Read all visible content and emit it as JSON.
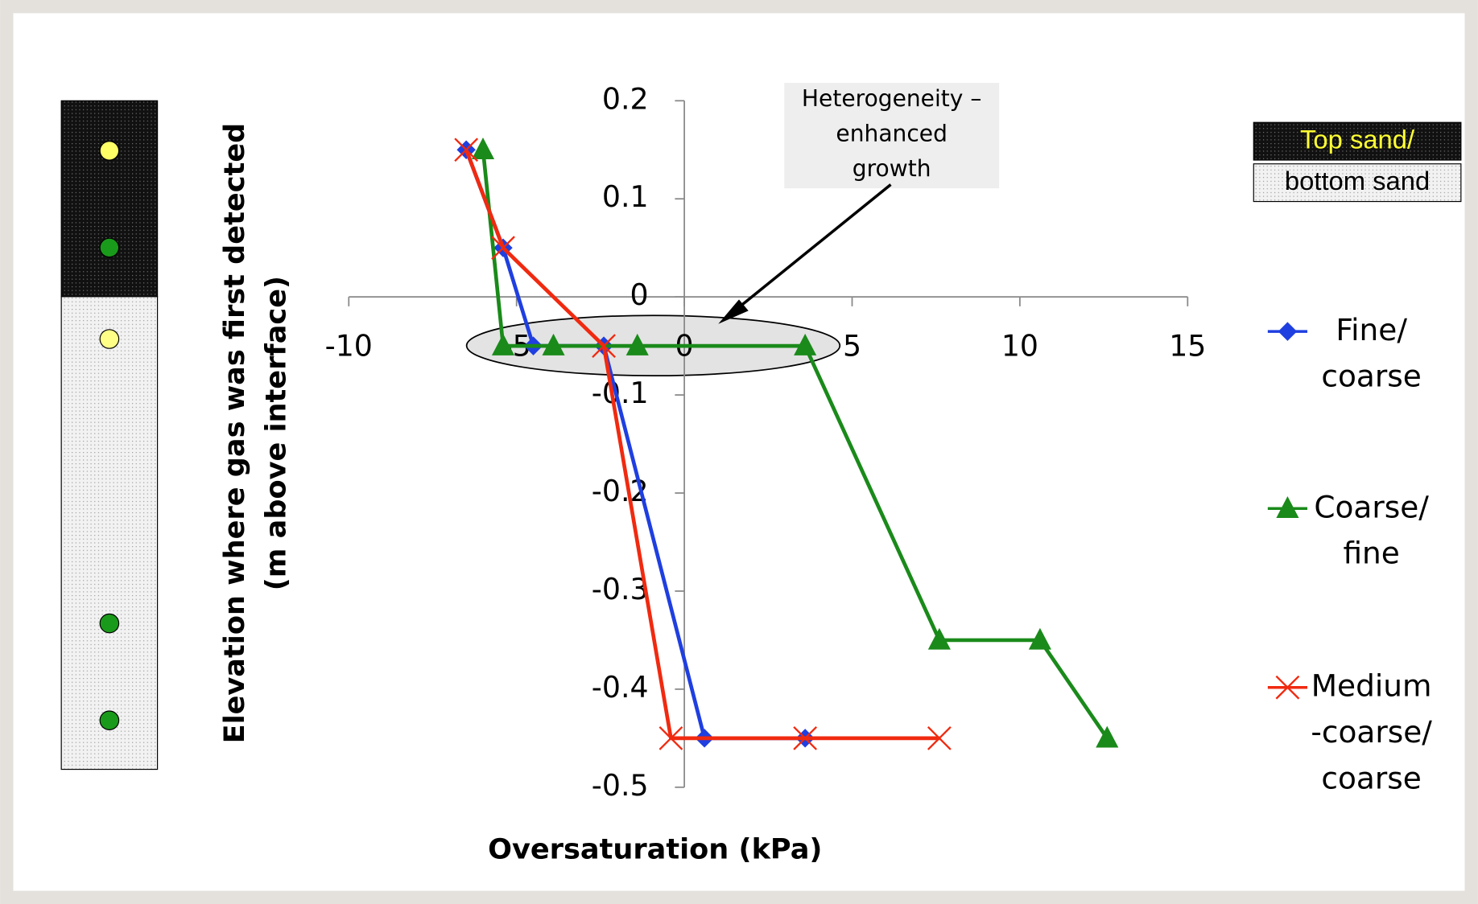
{
  "chart_data": {
    "type": "line",
    "x_label": "Oversaturation (kPa)",
    "y_label": [
      "Elevation where gas was first detected",
      "(m above interface)"
    ],
    "annotation": "Heterogeneity – enhanced growth",
    "sand_labels": [
      "Top sand/",
      "bottom sand"
    ],
    "xlim": [
      -10,
      15
    ],
    "xticks": [
      -10,
      -5,
      0,
      5,
      10,
      15
    ],
    "ylim": [
      -0.5,
      0.2
    ],
    "yticks": [
      0.2,
      0.1,
      0,
      -0.1,
      -0.2,
      -0.3,
      -0.4,
      -0.5
    ],
    "series": [
      {
        "name": "Fine/ coarse",
        "color": "#1f3fe0",
        "marker": "diamond",
        "x": [
          -6.5,
          -5.4,
          -4.5,
          -2.4,
          0.6,
          3.6
        ],
        "values": [
          0.15,
          0.05,
          -0.05,
          -0.05,
          -0.45,
          -0.45
        ]
      },
      {
        "name": "Coarse/ fine",
        "color": "#1a8a1a",
        "marker": "triangle",
        "x": [
          -6.0,
          -5.4,
          -3.9,
          -1.4,
          3.6,
          7.6,
          10.6,
          12.6
        ],
        "values": [
          0.15,
          -0.05,
          -0.05,
          -0.05,
          -0.05,
          -0.35,
          -0.35,
          -0.45
        ]
      },
      {
        "name": "Medium -coarse/ coarse",
        "color": "#f02a10",
        "marker": "x",
        "x": [
          -6.5,
          -5.4,
          -2.4,
          -0.4,
          3.6,
          7.6
        ],
        "values": [
          0.15,
          0.05,
          -0.05,
          -0.45,
          -0.45,
          -0.45
        ]
      }
    ]
  }
}
